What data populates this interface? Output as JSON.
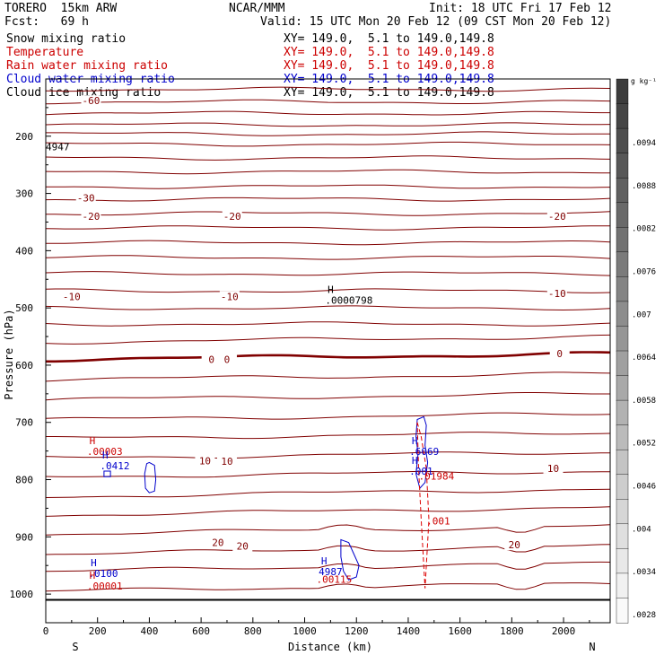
{
  "header": {
    "model": "TORERO  15km ARW",
    "center": "NCAR/MMM",
    "init": "Init: 18 UTC Fri 17 Feb 12",
    "fcst": "Fcst:   69 h",
    "valid": "Valid: 15 UTC Mon 20 Feb 12 (09 CST Mon 20 Feb 12)",
    "fields": [
      {
        "name": "Snow mixing ratio",
        "xy": "",
        "color": "#000000"
      },
      {
        "name": "Temperature",
        "xy": "XY= 149.0,  5.1 to 149.0,149.8",
        "color": "#cc0000"
      },
      {
        "name": "Rain water mixing ratio",
        "xy": "XY= 149.0,  5.1 to 149.0,149.8",
        "color": "#cc0000"
      },
      {
        "name": "Cloud water mixing ratio",
        "xy": "XY= 149.0,  5.1 to 149.0,149.8",
        "color": "#0000cc"
      },
      {
        "name": "Cloud ice mixing ratio",
        "xy": "XY= 149.0,  5.1 to 149.0,149.8",
        "color": "#000000"
      }
    ],
    "snow_xy": "XY= 149.0,  5.1 to 149.0,149.8"
  },
  "chart_data": {
    "type": "cross-section contour",
    "xlabel": "Distance (km)",
    "ylabel": "Pressure (hPa)",
    "xlim": [
      0,
      2180
    ],
    "ylim": [
      1050,
      100
    ],
    "x_ticks": [
      0,
      200,
      400,
      600,
      800,
      1000,
      1200,
      1400,
      1600,
      1800,
      2000
    ],
    "y_ticks": [
      200,
      300,
      400,
      500,
      600,
      700,
      800,
      900,
      1000
    ],
    "left_end": "S",
    "right_end": "N",
    "colorbar": {
      "unit": "g kg⁻¹",
      "labels": [
        ".0094",
        ".0088",
        ".0082",
        ".0076",
        ".007",
        ".0064",
        ".0058",
        ".0052",
        ".0046",
        ".004",
        ".0034",
        ".0028"
      ]
    },
    "temperature_labels": [
      {
        "text": "-60",
        "x": 175,
        "p": 138
      },
      {
        "text": "-30",
        "x": 155,
        "p": 308
      },
      {
        "text": "-20",
        "x": 175,
        "p": 340
      },
      {
        "text": "-20",
        "x": 720,
        "p": 340
      },
      {
        "text": "-20",
        "x": 1975,
        "p": 340
      },
      {
        "text": "-10",
        "x": 100,
        "p": 480
      },
      {
        "text": "-10",
        "x": 710,
        "p": 480
      },
      {
        "text": "-10",
        "x": 1975,
        "p": 475
      },
      {
        "text": "0",
        "x": 640,
        "p": 590
      },
      {
        "text": "0",
        "x": 700,
        "p": 590
      },
      {
        "text": "0",
        "x": 1985,
        "p": 580
      },
      {
        "text": "10",
        "x": 615,
        "p": 767
      },
      {
        "text": "10",
        "x": 700,
        "p": 768
      },
      {
        "text": "10",
        "x": 1960,
        "p": 780
      },
      {
        "text": "20",
        "x": 665,
        "p": 910
      },
      {
        "text": "20",
        "x": 760,
        "p": 916
      },
      {
        "text": "20",
        "x": 1810,
        "p": 914
      }
    ],
    "extrema": [
      {
        "letter": "H",
        "value": ".0000798",
        "x": 1100,
        "p": 493,
        "color": "#000000"
      },
      {
        "letter": "H",
        "value": ".00003",
        "x": 180,
        "p": 757,
        "color": "#cc0000"
      },
      {
        "letter": "H",
        "value": ".0412",
        "x": 230,
        "p": 782,
        "color": "#0000cc"
      },
      {
        "letter": "H",
        "value": ".6069",
        "x": 1425,
        "p": 757,
        "color": "#0000cc"
      },
      {
        "letter": "H",
        "value": ".001",
        "x": 1425,
        "p": 791,
        "color": "#0000cc"
      },
      {
        "letter": "",
        "value": ".01984",
        "x": 1440,
        "p": 800,
        "color": "#cc0000"
      },
      {
        "letter": "",
        "value": ".001",
        "x": 1470,
        "p": 878,
        "color": "#cc0000"
      },
      {
        "letter": "H",
        "value": ".0100",
        "x": 185,
        "p": 970,
        "color": "#0000cc"
      },
      {
        "letter": "H",
        "value": ".00001",
        "x": 180,
        "p": 992,
        "color": "#cc0000"
      },
      {
        "letter": "H",
        "value": "4987",
        "x": 1075,
        "p": 967,
        "color": "#0000cc"
      },
      {
        "letter": "",
        "value": ".00115",
        "x": 1045,
        "p": 980,
        "color": "#cc0000"
      },
      {
        "letter": "",
        "value": "4947",
        "x": 0,
        "p": 225,
        "color": "#000000"
      }
    ]
  },
  "colors": {
    "temperature": "#800000",
    "rain": "#dd0000",
    "cloud_water": "#0000cc",
    "axis": "#000000"
  }
}
